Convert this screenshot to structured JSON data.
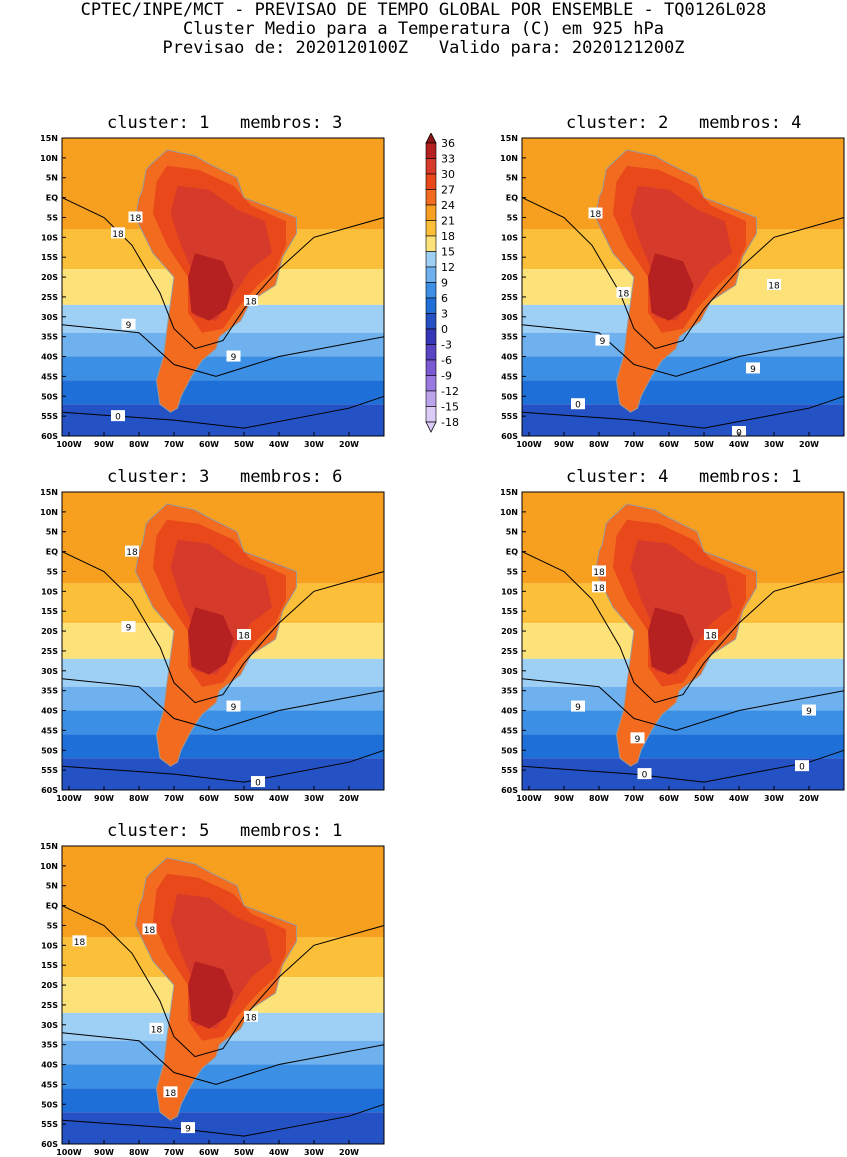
{
  "header": {
    "line1": "CPTEC/INPE/MCT - PREVISAO DE TEMPO GLOBAL POR ENSEMBLE - TQ0126L028",
    "line2": "Cluster Medio para a Temperatura (C) em 925 hPa",
    "line3": "Previsao de: 2020120100Z   Valido para: 2020121200Z"
  },
  "axes": {
    "lat_labels": [
      "15N",
      "10N",
      "5N",
      "EQ",
      "5S",
      "10S",
      "15S",
      "20S",
      "25S",
      "30S",
      "35S",
      "40S",
      "45S",
      "50S",
      "55S",
      "60S"
    ],
    "lon_labels": [
      "100W",
      "90W",
      "80W",
      "70W",
      "60W",
      "50W",
      "40W",
      "30W",
      "20W"
    ]
  },
  "colorbar": {
    "levels": [
      "36",
      "33",
      "30",
      "27",
      "24",
      "21",
      "18",
      "15",
      "12",
      "9",
      "6",
      "3",
      "0",
      "-3",
      "-6",
      "-9",
      "-12",
      "-15",
      "-18"
    ],
    "colors": [
      "#8e1616",
      "#b52020",
      "#d63a2a",
      "#e8481a",
      "#f26b1f",
      "#f7a01f",
      "#fbbf3a",
      "#fde279",
      "#9ecff5",
      "#6fb1ee",
      "#3b8fe4",
      "#1f6fd8",
      "#2451c4",
      "#3636b8",
      "#5a44c4",
      "#7a5ad2",
      "#9a7ae0",
      "#bba4ec",
      "#dccbf6"
    ]
  },
  "panels": [
    {
      "title": "cluster: 1   membros: 3",
      "contour_labels": [
        "18",
        "18",
        "18",
        "9",
        "9",
        "0"
      ]
    },
    {
      "title": "cluster: 2   membros: 4",
      "contour_labels": [
        "18",
        "18",
        "18",
        "9",
        "9",
        "0",
        "0"
      ]
    },
    {
      "title": "cluster: 3   membros: 6",
      "contour_labels": [
        "18",
        "18",
        "9",
        "9",
        "0"
      ]
    },
    {
      "title": "cluster: 4   membros: 1",
      "contour_labels": [
        "18",
        "18",
        "18",
        "9",
        "9",
        "9",
        "0",
        "0"
      ]
    },
    {
      "title": "cluster: 5   membros: 1",
      "contour_labels": [
        "18",
        "18",
        "18",
        "18",
        "18",
        "9"
      ]
    }
  ]
}
